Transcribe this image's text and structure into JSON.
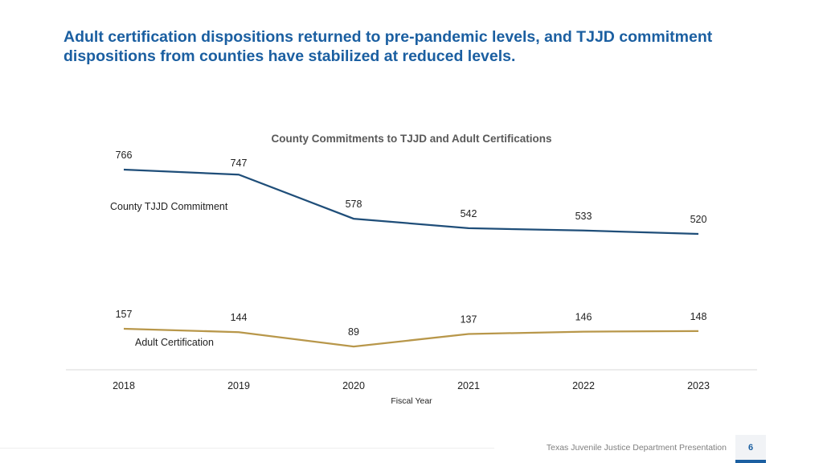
{
  "page": {
    "title": "Adult certification dispositions returned to pre-pandemic levels, and TJJD commitment dispositions from counties have stabilized at reduced levels.",
    "footer": "Texas Juvenile Justice Department Presentation",
    "page_number": "6"
  },
  "chart_data": {
    "type": "line",
    "title": "County Commitments to TJJD and Adult Certifications",
    "xlabel": "Fiscal Year",
    "ylabel": "",
    "categories": [
      "2018",
      "2019",
      "2020",
      "2021",
      "2022",
      "2023"
    ],
    "ylim": [
      0,
      800
    ],
    "grid": false,
    "series": [
      {
        "name": "County TJJD Commitment",
        "color": "#1f4e79",
        "values": [
          766,
          747,
          578,
          542,
          533,
          520
        ]
      },
      {
        "name": "Adult Certification",
        "color": "#b8974a",
        "values": [
          157,
          144,
          89,
          137,
          146,
          148
        ]
      }
    ]
  }
}
